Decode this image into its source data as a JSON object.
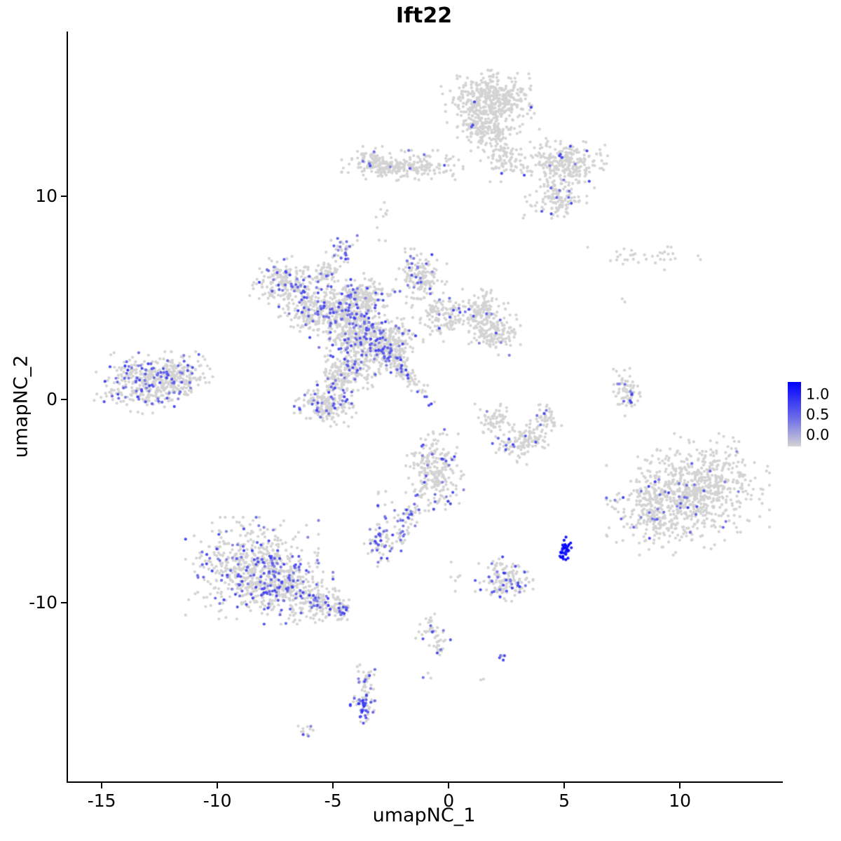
{
  "title": "Ift22",
  "chart_data": {
    "type": "scatter",
    "title": "Ift22",
    "xlabel": "umapNC_1",
    "ylabel": "umapNC_2",
    "xlim": [
      -16.52,
      14.39
    ],
    "ylim": [
      -18.79,
      18.1
    ],
    "grid": false,
    "x_ticks": [
      {
        "value": -15,
        "label": "-15"
      },
      {
        "value": -10,
        "label": "-10"
      },
      {
        "value": -5,
        "label": "-5"
      },
      {
        "value": 0,
        "label": "0"
      },
      {
        "value": 5,
        "label": "5"
      },
      {
        "value": 10,
        "label": "10"
      }
    ],
    "y_ticks": [
      {
        "value": 10,
        "label": "10"
      },
      {
        "value": 0,
        "label": "0"
      },
      {
        "value": -10,
        "label": "-10"
      }
    ],
    "legend": {
      "position": "right",
      "labels": [
        "1.0",
        "0.5",
        "0.0"
      ],
      "color_low": "#D3D3D3",
      "color_high": "#0000FF"
    },
    "point_radius": 2.1,
    "seed": 42,
    "expr_t_range": [
      0.35,
      0.7
    ],
    "representation": "gaussian_cluster_summary",
    "clusters": [
      {
        "x": 1.8,
        "y": 14.7,
        "sx": 0.85,
        "sy": 0.6,
        "n": 420,
        "frac": 0.01
      },
      {
        "x": 1.7,
        "y": 13.3,
        "sx": 0.6,
        "sy": 0.5,
        "n": 170,
        "frac": 0.02
      },
      {
        "x": 2.4,
        "y": 11.9,
        "sx": 0.45,
        "sy": 0.5,
        "n": 90,
        "frac": 0.03
      },
      {
        "x": 5.0,
        "y": 11.6,
        "sx": 0.75,
        "sy": 0.5,
        "n": 260,
        "frac": 0.05
      },
      {
        "x": 4.6,
        "y": 9.9,
        "sx": 0.55,
        "sy": 0.5,
        "n": 130,
        "frac": 0.06
      },
      {
        "x": -2.0,
        "y": 11.5,
        "sx": 1.05,
        "sy": 0.3,
        "n": 240,
        "frac": 0.04
      },
      {
        "x": -3.3,
        "y": 11.7,
        "sx": 0.3,
        "sy": 0.3,
        "n": 60,
        "frac": 0.05
      },
      {
        "x": -2.9,
        "y": 8.9,
        "sx": 0.15,
        "sy": 0.5,
        "n": 10,
        "frac": 0
      },
      {
        "x": -4.6,
        "y": 7.4,
        "sx": 0.28,
        "sy": 0.3,
        "n": 40,
        "frac": 0.3
      },
      {
        "x": -7.1,
        "y": 5.7,
        "sx": 0.6,
        "sy": 0.55,
        "n": 200,
        "frac": 0.12
      },
      {
        "x": -6.1,
        "y": 4.3,
        "sx": 0.5,
        "sy": 0.5,
        "n": 150,
        "frac": 0.1
      },
      {
        "x": -4.6,
        "y": 4.4,
        "sx": 0.65,
        "sy": 0.6,
        "n": 280,
        "frac": 0.15
      },
      {
        "x": -3.9,
        "y": 3.4,
        "sx": 0.7,
        "sy": 0.65,
        "n": 350,
        "frac": 0.18
      },
      {
        "x": -2.6,
        "y": 2.6,
        "sx": 0.6,
        "sy": 0.6,
        "n": 260,
        "frac": 0.18
      },
      {
        "x": -2.0,
        "y": 1.5,
        "sx": 0.85,
        "sy": 0.18,
        "rot": -55,
        "n": 120,
        "frac": 0.2
      },
      {
        "x": -1.2,
        "y": 6.0,
        "sx": 0.45,
        "sy": 0.65,
        "n": 160,
        "frac": 0.08
      },
      {
        "x": -0.3,
        "y": 4.1,
        "sx": 0.5,
        "sy": 0.5,
        "n": 120,
        "frac": 0.05
      },
      {
        "x": 1.4,
        "y": 4.3,
        "sx": 0.5,
        "sy": 0.45,
        "n": 140,
        "frac": 0.04
      },
      {
        "x": 2.0,
        "y": 3.3,
        "sx": 0.45,
        "sy": 0.45,
        "n": 130,
        "frac": 0.04
      },
      {
        "x": -5.3,
        "y": 6.2,
        "sx": 0.35,
        "sy": 0.3,
        "n": 60,
        "frac": 0.1
      },
      {
        "x": -3.6,
        "y": 5.2,
        "sx": 0.5,
        "sy": 0.4,
        "n": 120,
        "frac": 0.12
      },
      {
        "x": -4.2,
        "y": 1.7,
        "sx": 0.5,
        "sy": 0.5,
        "n": 150,
        "frac": 0.12
      },
      {
        "x": -4.8,
        "y": 1.0,
        "sx": 0.35,
        "sy": 0.4,
        "n": 80,
        "frac": 0.12
      },
      {
        "x": -5.3,
        "y": -0.2,
        "sx": 0.55,
        "sy": 0.45,
        "n": 200,
        "frac": 0.15
      },
      {
        "x": -13.2,
        "y": 0.8,
        "sx": 0.85,
        "sy": 0.6,
        "n": 320,
        "frac": 0.2
      },
      {
        "x": -11.7,
        "y": 1.1,
        "sx": 0.6,
        "sy": 0.5,
        "n": 200,
        "frac": 0.12
      },
      {
        "x": -0.6,
        "y": -3.6,
        "sx": 0.5,
        "sy": 0.85,
        "n": 260,
        "frac": 0.08
      },
      {
        "x": -1.7,
        "y": -5.7,
        "sx": 0.2,
        "sy": 0.3,
        "n": 30,
        "frac": 0.3
      },
      {
        "x": -2.0,
        "y": -6.7,
        "sx": 0.18,
        "sy": 0.3,
        "n": 25,
        "frac": 0.3
      },
      {
        "x": 1.9,
        "y": -1.0,
        "sx": 0.35,
        "sy": 0.35,
        "n": 60,
        "frac": 0.05
      },
      {
        "x": 2.9,
        "y": -2.2,
        "sx": 0.5,
        "sy": 0.4,
        "n": 90,
        "frac": 0.06
      },
      {
        "x": 3.6,
        "y": -1.8,
        "sx": 0.3,
        "sy": 0.3,
        "n": 40,
        "frac": 0.05
      },
      {
        "x": 4.2,
        "y": -1.0,
        "sx": 0.28,
        "sy": 0.3,
        "n": 50,
        "frac": 0.04
      },
      {
        "x": 7.7,
        "y": 0.5,
        "sx": 0.28,
        "sy": 0.55,
        "n": 70,
        "frac": 0.12
      },
      {
        "x": 8.5,
        "y": 7.0,
        "sx": 1.2,
        "sy": 0.25,
        "n": 35,
        "frac": 0
      },
      {
        "x": 7.6,
        "y": 4.8,
        "sx": 0.1,
        "sy": 0.1,
        "n": 2,
        "frac": 0
      },
      {
        "x": 11.0,
        "y": -4.3,
        "sx": 1.15,
        "sy": 1.05,
        "n": 550,
        "frac": 0.04
      },
      {
        "x": 9.2,
        "y": -5.4,
        "sx": 0.95,
        "sy": 0.9,
        "n": 380,
        "frac": 0.05
      },
      {
        "x": -8.5,
        "y": -8.3,
        "sx": 1.15,
        "sy": 1.0,
        "n": 600,
        "frac": 0.22
      },
      {
        "x": -7.0,
        "y": -9.3,
        "sx": 0.8,
        "sy": 0.7,
        "n": 250,
        "frac": 0.18
      },
      {
        "x": -5.6,
        "y": -10.0,
        "sx": 0.5,
        "sy": 0.4,
        "n": 110,
        "frac": 0.12
      },
      {
        "x": -4.7,
        "y": -10.4,
        "sx": 0.3,
        "sy": 0.25,
        "n": 50,
        "frac": 0.1
      },
      {
        "x": -2.9,
        "y": -7.0,
        "sx": 0.3,
        "sy": 0.5,
        "n": 70,
        "frac": 0.25
      },
      {
        "x": 2.4,
        "y": -8.9,
        "sx": 0.5,
        "sy": 0.5,
        "n": 150,
        "frac": 0.18
      },
      {
        "x": 5.05,
        "y": -7.4,
        "sx": 0.13,
        "sy": 0.28,
        "n": 40,
        "frac": 0.95,
        "tmin": 0.8,
        "tmax": 1.0
      },
      {
        "x": -0.8,
        "y": -11.3,
        "sx": 0.25,
        "sy": 0.3,
        "n": 28,
        "frac": 0.15
      },
      {
        "x": -0.4,
        "y": -12.1,
        "sx": 0.2,
        "sy": 0.3,
        "n": 22,
        "frac": 0.3
      },
      {
        "x": 2.3,
        "y": -12.6,
        "sx": 0.12,
        "sy": 0.15,
        "n": 8,
        "frac": 0.5
      },
      {
        "x": -3.6,
        "y": -13.9,
        "sx": 0.18,
        "sy": 0.4,
        "n": 45,
        "frac": 0.15
      },
      {
        "x": -3.7,
        "y": -15.1,
        "sx": 0.22,
        "sy": 0.35,
        "n": 55,
        "frac": 0.6,
        "tmin": 0.4,
        "tmax": 0.75
      },
      {
        "x": -6.3,
        "y": -16.3,
        "sx": 0.18,
        "sy": 0.15,
        "n": 12,
        "frac": 0.35
      },
      {
        "x": 0.3,
        "y": -9.0,
        "sx": 0.2,
        "sy": 0.4,
        "n": 6,
        "frac": 0
      },
      {
        "x": -0.9,
        "y": -13.6,
        "sx": 0.15,
        "sy": 0.15,
        "n": 3,
        "frac": 0.3
      },
      {
        "x": 1.4,
        "y": -13.8,
        "sx": 0.1,
        "sy": 0.1,
        "n": 2,
        "frac": 0
      },
      {
        "x": -2.9,
        "y": -4.9,
        "sx": 0.3,
        "sy": 0.3,
        "n": 8,
        "frac": 0.1
      }
    ]
  }
}
